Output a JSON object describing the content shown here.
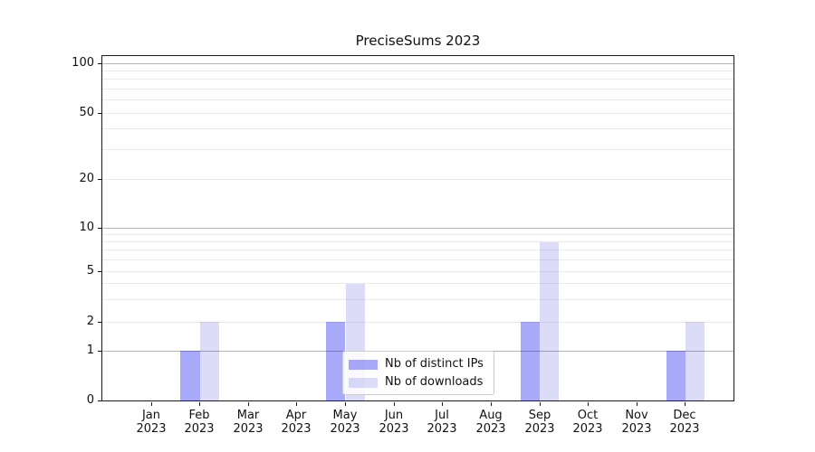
{
  "chart_data": {
    "type": "bar",
    "title": "PreciseSums 2023",
    "categories": [
      "Jan",
      "Feb",
      "Mar",
      "Apr",
      "May",
      "Jun",
      "Jul",
      "Aug",
      "Sep",
      "Oct",
      "Nov",
      "Dec"
    ],
    "category_year": "2023",
    "series": [
      {
        "name": "Nb of distinct IPs",
        "color": "#a9a9f9",
        "fill": "rgba(10,10,238,0.35)",
        "values": [
          0,
          1,
          0,
          0,
          2,
          0,
          0,
          0,
          2,
          0,
          0,
          1
        ]
      },
      {
        "name": "Nb of downloads",
        "color": "#dcdcf9",
        "fill": "rgba(5,5,215,0.14)",
        "values": [
          0,
          2,
          0,
          0,
          4,
          0,
          0,
          0,
          8,
          0,
          0,
          2
        ]
      }
    ],
    "y_axis": {
      "scale": "log-like (0,1 then logarithmic)",
      "tick_labels": [
        "0",
        "1",
        "2",
        "5",
        "10",
        "20",
        "50",
        "100"
      ],
      "tick_values": [
        0,
        1,
        2,
        5,
        10,
        20,
        50,
        100
      ],
      "grid_major": [
        1,
        10,
        100
      ],
      "grid_minor": [
        2,
        3,
        4,
        5,
        6,
        7,
        8,
        9,
        20,
        30,
        40,
        50,
        60,
        70,
        80,
        90
      ],
      "ylim": [
        0,
        100
      ]
    },
    "x_axis": {
      "label_format": "Month over Year",
      "grid": false
    },
    "legend": {
      "position": "lower center",
      "items": [
        "Nb of distinct IPs",
        "Nb of downloads"
      ]
    }
  }
}
